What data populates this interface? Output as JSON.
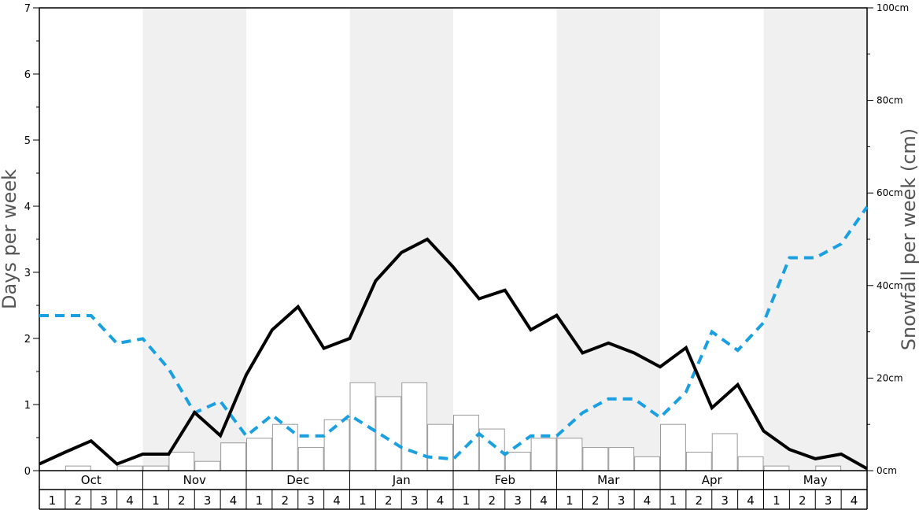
{
  "chart_data": {
    "type": "bar+line",
    "left_axis": {
      "label": "Days per week",
      "ylim": [
        0,
        7
      ],
      "ticks": [
        "0",
        "1",
        "2",
        "3",
        "4",
        "5",
        "6",
        "7"
      ]
    },
    "right_axis": {
      "label": "Snowfall per week (cm)",
      "ylim": [
        0,
        100
      ],
      "ticks": [
        "0cm",
        "20cm",
        "40cm",
        "60cm",
        "80cm",
        "100cm"
      ]
    },
    "months": [
      "Oct",
      "Nov",
      "Dec",
      "Jan",
      "Feb",
      "Mar",
      "Apr",
      "May"
    ],
    "weeks": [
      "1",
      "2",
      "3",
      "4"
    ],
    "snowfall_bars_cm": [
      0,
      1,
      0,
      1,
      1,
      4,
      2,
      6,
      7,
      10,
      5,
      11,
      19,
      16,
      19,
      10,
      12,
      9,
      4,
      7,
      7,
      5,
      5,
      3,
      10,
      4,
      8,
      3,
      1,
      0,
      1,
      0
    ],
    "days_series": [
      0.1,
      0.28,
      0.45,
      0.1,
      0.25,
      0.25,
      0.88,
      0.53,
      1.45,
      2.13,
      2.48,
      1.85,
      2.0,
      2.87,
      3.3,
      3.5,
      3.08,
      2.6,
      2.73,
      2.13,
      2.35,
      1.78,
      1.93,
      1.78,
      1.57,
      1.86,
      0.95,
      1.3,
      0.6,
      0.32,
      0.18,
      0.25,
      0.03
    ],
    "dashed_series_cm": [
      33.5,
      33.5,
      33.5,
      27.5,
      28.5,
      22,
      12.5,
      15,
      7.5,
      12,
      7.5,
      7.5,
      12,
      8.5,
      5,
      3,
      2.5,
      8,
      3.5,
      7.5,
      7.5,
      12.5,
      15.5,
      15.5,
      11.5,
      17,
      30,
      26,
      32,
      46,
      46,
      49,
      57
    ],
    "colors": {
      "bars_fill": "#ffffff",
      "bars_stroke": "#999999",
      "days_line": "#000000",
      "dashed_line": "#1aa0e0",
      "shade": "#f0f0f0"
    }
  }
}
